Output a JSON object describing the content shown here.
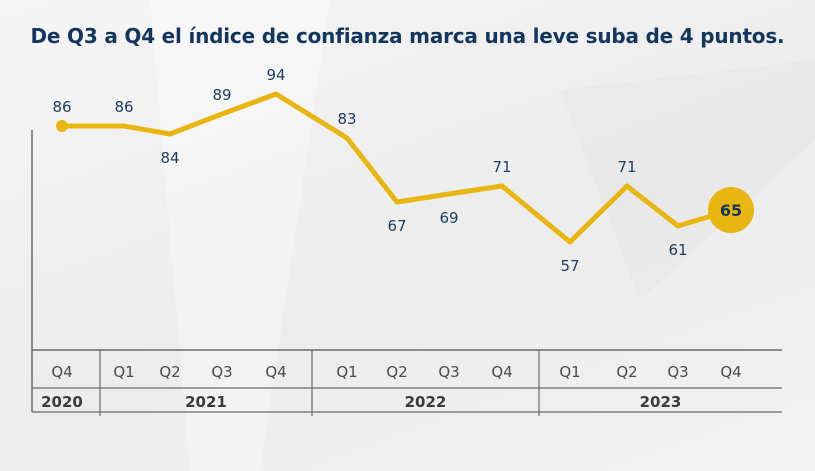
{
  "chart_data": {
    "type": "line",
    "title": "De Q3 a Q4 el índice de confianza marca una leve suba de 4 puntos.",
    "categories": [
      "Q4",
      "Q1",
      "Q2",
      "Q3",
      "Q4",
      "Q1",
      "Q2",
      "Q3",
      "Q4",
      "Q1",
      "Q2",
      "Q3",
      "Q4"
    ],
    "values": [
      86,
      86,
      84,
      89,
      94,
      83,
      67,
      69,
      71,
      57,
      71,
      61,
      65
    ],
    "years": [
      {
        "label": "2020",
        "count": 1
      },
      {
        "label": "2021",
        "count": 4
      },
      {
        "label": "2022",
        "count": 4
      },
      {
        "label": "2023",
        "count": 4
      }
    ],
    "highlight_last": true,
    "ylim": [
      30,
      110
    ],
    "line_color": "#e8b511",
    "label_color": "#1e3b5c",
    "axis_color": "#6a6a6a",
    "xlabel": "",
    "ylabel": ""
  }
}
